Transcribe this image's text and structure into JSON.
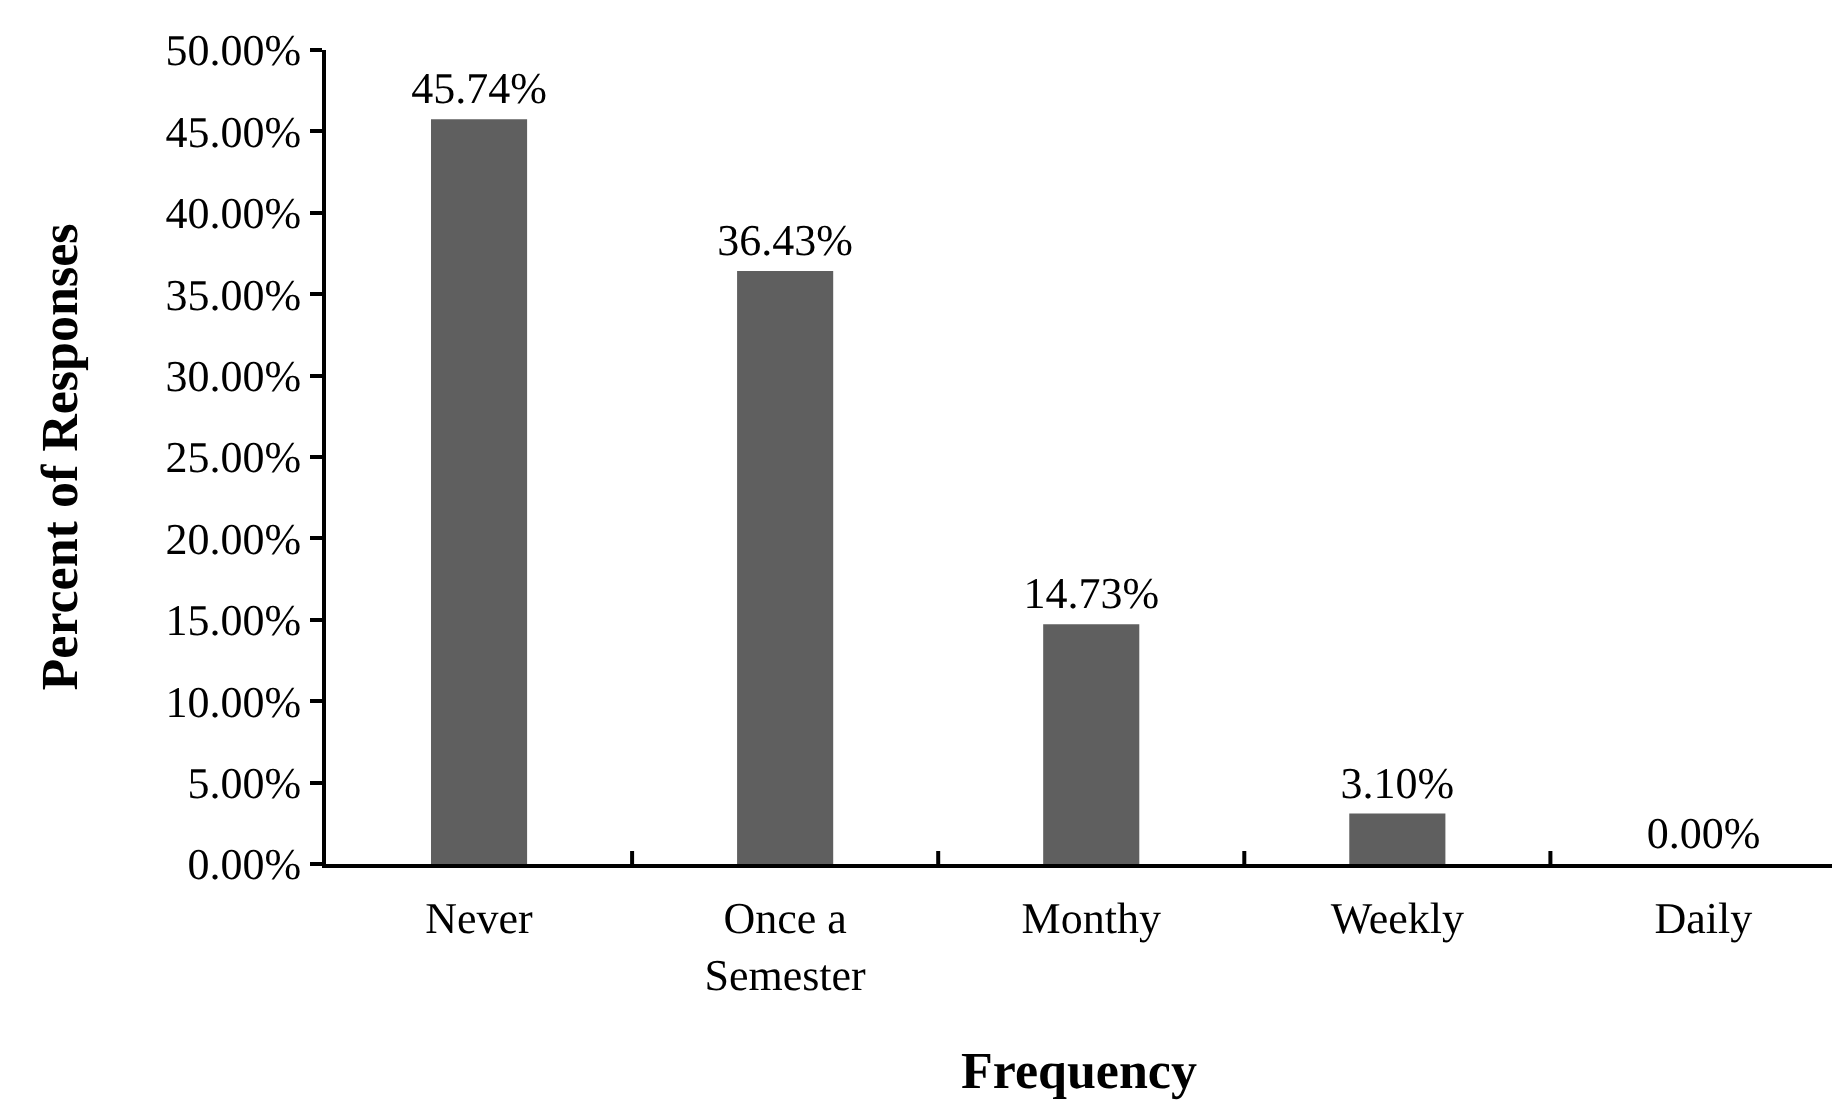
{
  "chart_data": {
    "type": "bar",
    "xlabel": "Frequency",
    "ylabel": "Percent of Responses",
    "categories": [
      "Never",
      "Once a Semester",
      "Monthy",
      "Weekly",
      "Daily"
    ],
    "values": [
      45.74,
      36.43,
      14.73,
      3.1,
      0.0
    ],
    "value_labels": [
      "45.74%",
      "36.43%",
      "14.73%",
      "3.10%",
      "0.00%"
    ],
    "color": "#5f5f5f",
    "ylim": [
      0,
      50
    ],
    "yticks": [
      {
        "value": 0,
        "label": "0.00%"
      },
      {
        "value": 5,
        "label": "5.00%"
      },
      {
        "value": 10,
        "label": "10.00%"
      },
      {
        "value": 15,
        "label": "15.00%"
      },
      {
        "value": 20,
        "label": "20.00%"
      },
      {
        "value": 25,
        "label": "25.00%"
      },
      {
        "value": 30,
        "label": "30.00%"
      },
      {
        "value": 35,
        "label": "35.00%"
      },
      {
        "value": 40,
        "label": "40.00%"
      },
      {
        "value": 45,
        "label": "45.00%"
      },
      {
        "value": 50,
        "label": "50.00%"
      }
    ]
  }
}
